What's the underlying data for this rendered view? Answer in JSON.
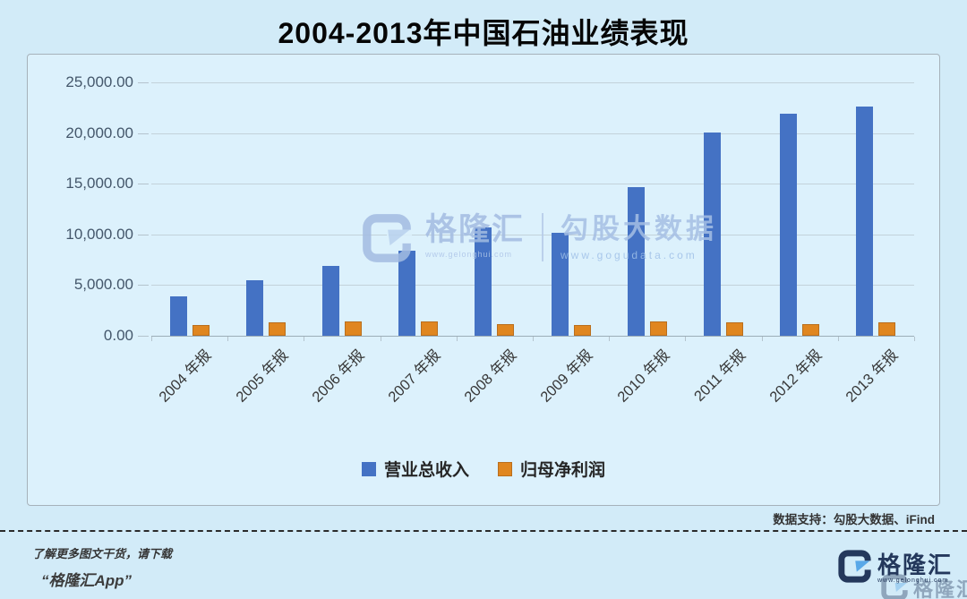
{
  "title": "2004-2013年中国石油业绩表现",
  "chart_data": {
    "type": "bar",
    "title": "2004-2013年中国石油业绩表现",
    "categories": [
      "2004 年报",
      "2005 年报",
      "2006 年报",
      "2007 年报",
      "2008 年报",
      "2009 年报",
      "2010 年报",
      "2011 年报",
      "2012 年报",
      "2013 年报"
    ],
    "series": [
      {
        "name": "营业总收入",
        "color": "#4472c4",
        "values": [
          3886,
          5522,
          6890,
          8350,
          10711,
          10194,
          14654,
          20038,
          21953,
          22581
        ]
      },
      {
        "name": "归母净利润",
        "color": "#e0861f",
        "border_color": "#b96f1e",
        "values": [
          1029,
          1334,
          1422,
          1456,
          1144,
          1034,
          1400,
          1330,
          1153,
          1296
        ]
      }
    ],
    "xlabel": "",
    "ylabel": "",
    "ylim": [
      0,
      25000
    ],
    "y_ticks": [
      "25,000.00",
      "20,000.00",
      "15,000.00",
      "10,000.00",
      "5,000.00",
      "0.00"
    ],
    "grid": true,
    "legend_position": "bottom"
  },
  "watermark": {
    "brand": "格隆汇",
    "brand_url": "www.gelonghui.com",
    "product": "勾股大数据",
    "product_url": "www.gogudata.com"
  },
  "source_note": "数据支持：勾股大数据、iFind",
  "footer": {
    "line1": "了解更多图文干货，请下载",
    "line2": "“格隆汇App”",
    "brand": "格隆汇",
    "brand_url": "www.gelonghui.com"
  },
  "icons": {
    "gelonghui_logo": "G-mark",
    "gelonghui_logo_colors": {
      "navy": "#24385c",
      "accent": "#59a8e8",
      "watermark_blue": "#a3bce2"
    }
  },
  "colors": {
    "page_background": "#d2ebf8",
    "panel_background": "#dcf1fc",
    "gridline": "#c3d2da",
    "axis_text": "#44576b"
  }
}
